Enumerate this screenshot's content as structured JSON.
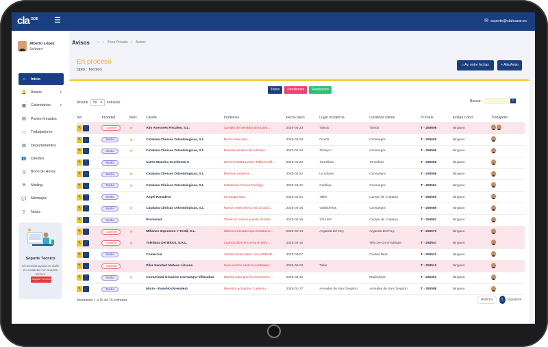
{
  "app": {
    "logo": "cla",
    "logo_sup": "GDE",
    "user_email": "soporte@ctalcazar.es"
  },
  "user": {
    "name": "Alberto López",
    "role": "Software"
  },
  "nav": [
    {
      "label": "Inicio",
      "icon": "home-icon",
      "active": true
    },
    {
      "label": "Avisos",
      "icon": "bell-icon",
      "caret": true
    },
    {
      "label": "Calendarios",
      "icon": "calendar-icon",
      "caret": true
    },
    {
      "label": "Partes firmados",
      "icon": "document-icon"
    },
    {
      "label": "Trabajadores",
      "icon": "id-card-icon"
    },
    {
      "label": "Departamentos",
      "icon": "building-icon"
    },
    {
      "label": "Clientes",
      "icon": "users-icon"
    },
    {
      "label": "Bono de Horas",
      "icon": "clock-icon"
    },
    {
      "label": "Mailing",
      "icon": "envelope-icon"
    },
    {
      "label": "Mensajes",
      "icon": "chat-icon"
    },
    {
      "label": "Notas",
      "icon": "note-icon"
    }
  ],
  "support": {
    "title": "Soporte Técnico",
    "desc": "Si necesita ayuda no dude en contactar con soporte técnico",
    "button": "Soporte Técnico"
  },
  "page": {
    "title": "Avisos",
    "breadcrumb": [
      "Zona Privada",
      "Avisos"
    ]
  },
  "process": {
    "title": "En proceso",
    "dpto": "Dpto.: Técnico",
    "btn_range": "Av. entre fechas",
    "btn_add": "Alta Aviso"
  },
  "filters": [
    {
      "label": "Todos",
      "color": "#1a3f80"
    },
    {
      "label": "Pendientes",
      "color": "#f03e6f"
    },
    {
      "label": "Realizados",
      "color": "#2fbf71"
    }
  ],
  "table_controls": {
    "show_label": "Mostrar",
    "show_value": "50",
    "show_suffix": "entradas",
    "search_label": "Buscar:"
  },
  "columns": [
    "Sel",
    "Prioridad",
    "Marc.",
    "Cliente",
    "Incidencia",
    "Fecha aviso",
    "Lugar incidencia",
    "Localidad cliente",
    "Nº Parte",
    "Estado Cobro",
    "Trabajador"
  ],
  "rows": [
    {
      "pink": true,
      "prioridad": "Urgente",
      "urgent": true,
      "star": true,
      "cliente": "Alm Asesores Fiscales, S.L.",
      "incidencia": "Cambio del servidor de la ded...",
      "fecha": "2025-04-23",
      "lugar": "Toledo",
      "localidad": "Toledo",
      "parte": "T - 250606",
      "estado": "Ninguno",
      "workers": 2
    },
    {
      "pink": false,
      "prioridad": "Media",
      "urgent": false,
      "star": true,
      "cliente": "Catalana Clinicas Odontologicas, S.L",
      "incidencia": "Excel caducado....",
      "fecha": "2025-04-23",
      "lugar": "Ocaña",
      "localidad": "Consuegra",
      "parte": "T - 250605",
      "estado": "Ninguno",
      "workers": 1
    },
    {
      "pink": false,
      "prioridad": "Media",
      "urgent": false,
      "star": true,
      "cliente": "Catalana Clinicas Odontologicas, S.L",
      "incidencia": "Durante revision de rutinaria ...",
      "fecha": "2025-04-22",
      "lugar": "Torrejon",
      "localidad": "Consuegra",
      "parte": "T - 250599",
      "estado": "Ninguno",
      "workers": 1
    },
    {
      "pink": false,
      "prioridad": "Media",
      "urgent": false,
      "star": false,
      "cliente": "CUAS Mancha Occidental II",
      "incidencia": "CUAS TOMELLOSO: Falla la wifi...",
      "fecha": "2025-04-22",
      "lugar": "Tomelloso",
      "localidad": "Tomelloso",
      "parte": "T - 250598",
      "estado": "Ninguno",
      "workers": 1
    },
    {
      "pink": false,
      "prioridad": "Media",
      "urgent": false,
      "star": true,
      "cliente": "Catalana Clinicas Odontologicas, S.L",
      "incidencia": "Renovar antivirus.",
      "fecha": "2025-04-22",
      "lugar": "La solana",
      "localidad": "Consuegra",
      "parte": "T - 250596",
      "estado": "Ninguno",
      "workers": 1
    },
    {
      "pink": false,
      "prioridad": "Media",
      "urgent": false,
      "star": true,
      "cliente": "Catalana Clinicas Odontologicas, S.L",
      "incidencia": "Instalación Clinica Carilleja...",
      "fecha": "2025-04-21",
      "lugar": "Carilleja",
      "localidad": "Consuegra",
      "parte": "T - 250591",
      "estado": "Ninguno",
      "workers": 1
    },
    {
      "pink": false,
      "prioridad": "Media",
      "urgent": false,
      "star": false,
      "cliente": "Angel Panadero",
      "incidencia": "Se apaga solo.",
      "fecha": "2025-04-21",
      "lugar": "Taller",
      "localidad": "Campo de Criptana",
      "parte": "T - 250590",
      "estado": "Ninguno",
      "workers": 1
    },
    {
      "pink": false,
      "prioridad": "Media",
      "urgent": false,
      "star": true,
      "cliente": "Catalana Clinicas Odontologicas, S.L",
      "incidencia": "Ramon miercoles a las 10 para...",
      "fecha": "2025-04-16",
      "lugar": "Valdepeñas",
      "localidad": "Consuegra",
      "parte": "T - 250586",
      "estado": "Ninguno",
      "workers": 1
    },
    {
      "pink": false,
      "prioridad": "Media",
      "urgent": false,
      "star": false,
      "cliente": "Promisvel",
      "incidencia": "Tienen un nuevo puesto de trab...",
      "fecha": "2025-04-15",
      "lugar": "TALLER",
      "localidad": "Campo de Criptana",
      "parte": "T - 250581",
      "estado": "Ninguno",
      "workers": 1
    },
    {
      "pink": true,
      "prioridad": "Urgente",
      "urgent": true,
      "star": true,
      "cliente": "Millanes Impresion Y Textil, S.L.",
      "incidencia": "Ultimo ordenador que instalamo...",
      "fecha": "2025-04-14",
      "lugar": "Arganda del Rey",
      "localidad": "Arganda Del Rey",
      "parte": "T - 250570",
      "estado": "Ninguno",
      "workers": 1
    },
    {
      "pink": true,
      "prioridad": "Urgente",
      "urgent": true,
      "star": true,
      "cliente": "Toledana Del Block, S.A.L.",
      "incidencia": "Cuando abre el correo le abre ...",
      "fecha": "2025-04-10",
      "lugar": "",
      "localidad": "Villa De Don Fadrique",
      "parte": "T - 250547",
      "estado": "Ninguno",
      "workers": 1
    },
    {
      "pink": false,
      "prioridad": "Media",
      "urgent": false,
      "star": false,
      "cliente": "Comercial",
      "incidencia": "Visitas comerciales: VILLARRUB...",
      "fecha": "2025-04-07",
      "lugar": "",
      "localidad": "Ciudad Real",
      "parte": "T - 250522",
      "estado": "Ninguno",
      "workers": 1
    },
    {
      "pink": true,
      "prioridad": "Urgente",
      "urgent": true,
      "star": false,
      "cliente": "Pilar Sanchez Mateos Lizcano",
      "incidencia": "Hace mucho ruido el ventilador...",
      "fecha": "2025-04-03",
      "lugar": "Taller",
      "localidad": "",
      "parte": "T - 250512",
      "estado": "Ninguno",
      "workers": 1
    },
    {
      "pink": false,
      "prioridad": "Media",
      "urgent": false,
      "star": true,
      "cliente": "Comunidad Usuarios Consuegra-Villacañas",
      "incidencia": "Llaman para que les renuevenc...",
      "fecha": "2025-03-12",
      "lugar": "",
      "localidad": "Madridejos",
      "parte": "T - 250391",
      "estado": "Ninguno",
      "workers": 1
    },
    {
      "pink": false,
      "prioridad": "Media",
      "urgent": false,
      "star": false,
      "cliente": "Mario - Eusebio (Arenales)",
      "incidencia": "Necesita actualizar 2 antiviru...",
      "fecha": "2025-01-17",
      "lugar": "Arenales de San Gregorio",
      "localidad": "Arenales de San Gregorio",
      "parte": "T - 250088",
      "estado": "Ninguno",
      "workers": 1
    }
  ],
  "footer": {
    "showing": "Mostrando 1 a 15 de 15 entradas",
    "prev": "Anterior",
    "page": "1",
    "next": "Siguiente"
  }
}
